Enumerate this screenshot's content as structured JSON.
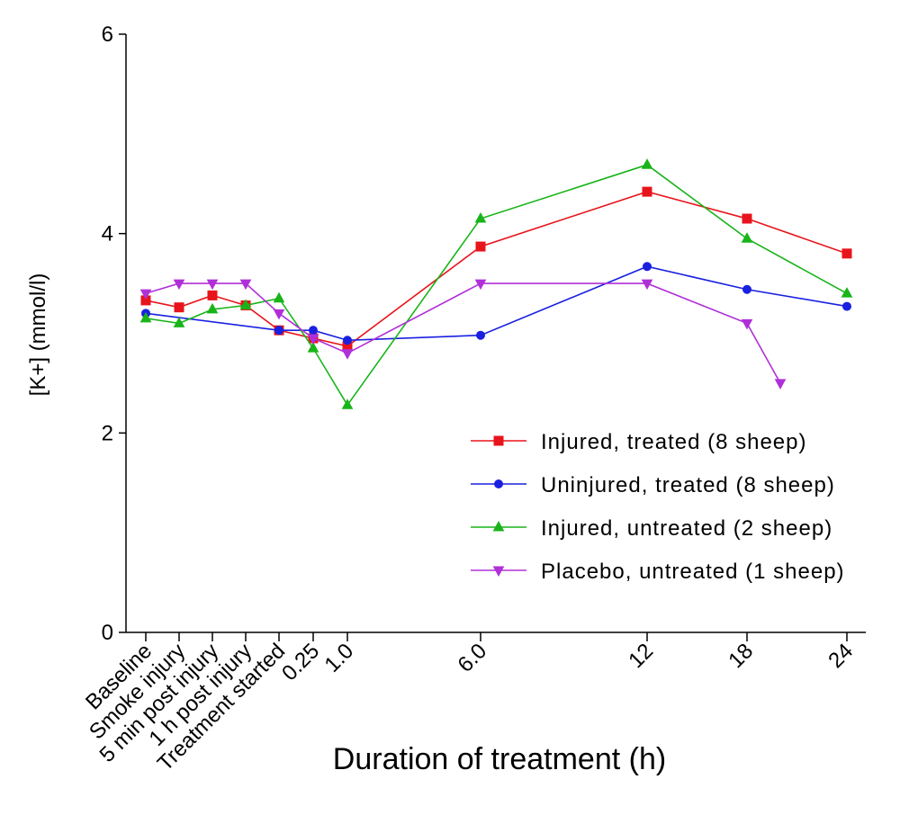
{
  "chart_data": {
    "type": "line",
    "xlabel": "Duration of treatment (h)",
    "ylabel": "[K+] (mmol/l)",
    "ylim": [
      0,
      6
    ],
    "yticks": [
      "0",
      "2",
      "4",
      "6"
    ],
    "categories": [
      "Baseline",
      "Smoke injury",
      "5 min post injury",
      "1 h post injury",
      "Treatment started",
      "0.25",
      "1.0",
      "6.0",
      "12",
      "18",
      "24"
    ],
    "grid": false,
    "legend_position": "right",
    "series": [
      {
        "name": "Injured, treated (8 sheep)",
        "color": "#e8141b",
        "marker": "square",
        "points": [
          [
            "Baseline",
            3.33
          ],
          [
            "Smoke injury",
            3.26
          ],
          [
            "5 min post injury",
            3.38
          ],
          [
            "1 h post injury",
            3.28
          ],
          [
            "Treatment started",
            3.03
          ],
          [
            "0.25",
            2.95
          ],
          [
            "1.0",
            2.87
          ],
          [
            "6.0",
            3.87
          ],
          [
            "12",
            4.42
          ],
          [
            "18",
            4.15
          ],
          [
            "24",
            3.8
          ]
        ]
      },
      {
        "name": "Uninjured, treated (8 sheep)",
        "color": "#1a20e0",
        "marker": "circle",
        "points": [
          [
            "Baseline",
            3.2
          ],
          [
            "Treatment started",
            3.03
          ],
          [
            "0.25",
            3.03
          ],
          [
            "1.0",
            2.93
          ],
          [
            "6.0",
            2.98
          ],
          [
            "12",
            3.67
          ],
          [
            "18",
            3.44
          ],
          [
            "24",
            3.27
          ]
        ]
      },
      {
        "name": "Injured, untreated (2 sheep)",
        "color": "#19b419",
        "marker": "triangle-up",
        "points": [
          [
            "Baseline",
            3.15
          ],
          [
            "Smoke injury",
            3.1
          ],
          [
            "5 min post injury",
            3.24
          ],
          [
            "1 h post injury",
            3.28
          ],
          [
            "Treatment started",
            3.35
          ],
          [
            "0.25",
            2.85
          ],
          [
            "1.0",
            2.28
          ],
          [
            "6.0",
            4.15
          ],
          [
            "12",
            4.69
          ],
          [
            "18",
            3.95
          ],
          [
            "24",
            3.4
          ]
        ]
      },
      {
        "name": "Placebo, untreated (1 sheep)",
        "color": "#b030d8",
        "marker": "triangle-down",
        "points": [
          [
            "Baseline",
            3.4
          ],
          [
            "Smoke injury",
            3.5
          ],
          [
            "5 min post injury",
            3.5
          ],
          [
            "1 h post injury",
            3.5
          ],
          [
            "Treatment started",
            3.2
          ],
          [
            "0.25",
            2.95
          ],
          [
            "1.0",
            2.8
          ],
          [
            "6.0",
            3.5
          ],
          [
            "12",
            3.5
          ],
          [
            "18",
            3.1
          ],
          [
            "20",
            2.5
          ]
        ]
      }
    ]
  }
}
